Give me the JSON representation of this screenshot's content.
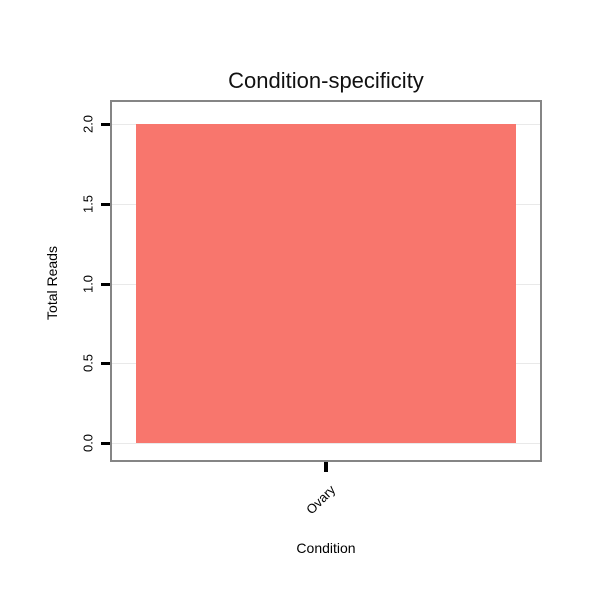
{
  "page": {
    "background": "#ffffff"
  },
  "chart_data": {
    "type": "bar",
    "title": "Condition-specificity",
    "xlabel": "Condition",
    "ylabel": "Total Reads",
    "categories": [
      "Ovary"
    ],
    "values": [
      2.0
    ],
    "ylim": [
      0,
      2.0
    ],
    "ytick_labels": [
      "0.0",
      "0.5",
      "1.0",
      "1.5",
      "2.0"
    ],
    "ytick_values": [
      0,
      0.5,
      1.0,
      1.5,
      2.0
    ],
    "bar_color": "#F8766D",
    "panel_border_color": "#858585",
    "grid_color": "#e9e9e9",
    "grid": true,
    "legend": "none"
  }
}
